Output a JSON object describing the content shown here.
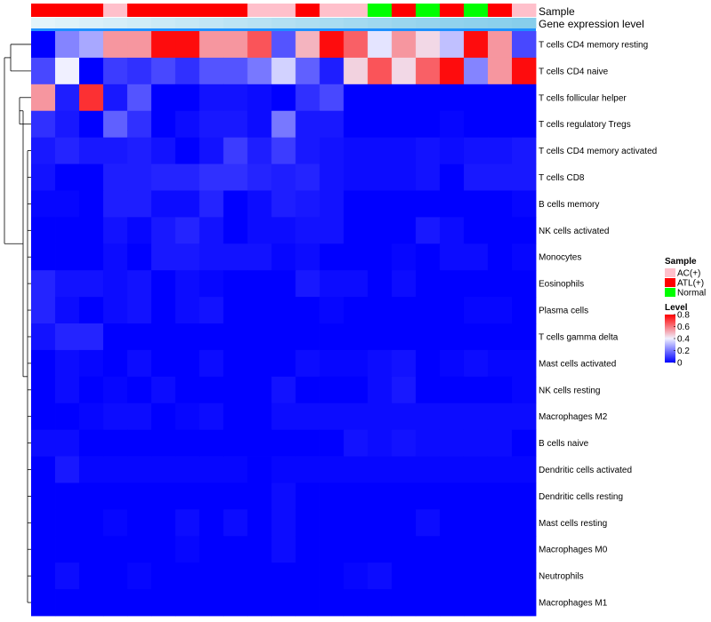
{
  "chart_data": {
    "type": "heatmap",
    "annotation_titles": {
      "sample": "Sample",
      "gene_expression": "Gene expression level"
    },
    "rows": [
      "T cells CD4 memory resting",
      "T cells CD4 naive",
      "T cells follicular helper",
      "T cells regulatory  Tregs",
      "T cells CD4 memory activated",
      "T cells CD8",
      "B cells memory",
      "NK cells activated",
      "Monocytes",
      "Eosinophils",
      "Plasma cells",
      "T cells gamma delta",
      "Mast cells activated",
      "NK cells resting",
      "Macrophages M2",
      "B cells naive",
      "Dendritic cells activated",
      "Dendritic cells resting",
      "Mast cells resting",
      "Macrophages M0",
      "Neutrophils",
      "Macrophages M1"
    ],
    "sample_groups": [
      "ATL(+)",
      "ATL(+)",
      "ATL(+)",
      "AC(+)",
      "ATL(+)",
      "ATL(+)",
      "ATL(+)",
      "ATL(+)",
      "ATL(+)",
      "AC(+)",
      "AC(+)",
      "ATL(+)",
      "AC(+)",
      "AC(+)",
      "Normal",
      "ATL(+)",
      "Normal",
      "ATL(+)",
      "Normal",
      "ATL(+)",
      "AC(+)"
    ],
    "gene_expression_level": [
      0.05,
      0.1,
      0.15,
      0.2,
      0.25,
      0.3,
      0.35,
      0.4,
      0.45,
      0.5,
      0.55,
      0.6,
      0.65,
      0.7,
      0.75,
      0.8,
      0.85,
      0.9,
      0.93,
      0.96,
      1.0
    ],
    "values": [
      [
        0.0,
        0.22,
        0.28,
        0.55,
        0.55,
        0.78,
        0.78,
        0.55,
        0.55,
        0.66,
        0.14,
        0.5,
        0.78,
        0.64,
        0.38,
        0.55,
        0.44,
        0.32,
        0.78,
        0.55,
        0.12
      ],
      [
        0.12,
        0.4,
        0.0,
        0.1,
        0.08,
        0.12,
        0.08,
        0.14,
        0.14,
        0.2,
        0.35,
        0.16,
        0.05,
        0.45,
        0.66,
        0.44,
        0.64,
        0.78,
        0.22,
        0.55,
        0.78
      ],
      [
        0.55,
        0.05,
        0.72,
        0.04,
        0.14,
        0.0,
        0.0,
        0.03,
        0.03,
        0.02,
        0.0,
        0.08,
        0.12,
        0.0,
        0.0,
        0.0,
        0.0,
        0.0,
        0.0,
        0.0,
        0.0
      ],
      [
        0.08,
        0.04,
        0.0,
        0.16,
        0.08,
        0.0,
        0.02,
        0.04,
        0.04,
        0.02,
        0.2,
        0.04,
        0.04,
        0.0,
        0.0,
        0.0,
        0.0,
        0.01,
        0.0,
        0.0,
        0.0
      ],
      [
        0.04,
        0.06,
        0.04,
        0.04,
        0.05,
        0.03,
        0.0,
        0.03,
        0.1,
        0.05,
        0.1,
        0.04,
        0.03,
        0.02,
        0.02,
        0.02,
        0.03,
        0.02,
        0.03,
        0.03,
        0.04
      ],
      [
        0.03,
        0.0,
        0.0,
        0.05,
        0.05,
        0.06,
        0.06,
        0.08,
        0.08,
        0.06,
        0.05,
        0.06,
        0.03,
        0.02,
        0.02,
        0.02,
        0.03,
        0.0,
        0.04,
        0.04,
        0.04
      ],
      [
        0.01,
        0.01,
        0.0,
        0.05,
        0.05,
        0.02,
        0.02,
        0.06,
        0.0,
        0.02,
        0.05,
        0.04,
        0.03,
        0.0,
        0.0,
        0.0,
        0.0,
        0.0,
        0.0,
        0.0,
        0.01
      ],
      [
        0.0,
        0.0,
        0.0,
        0.03,
        0.01,
        0.04,
        0.06,
        0.03,
        0.0,
        0.02,
        0.02,
        0.03,
        0.03,
        0.0,
        0.0,
        0.0,
        0.04,
        0.02,
        0.0,
        0.0,
        0.0
      ],
      [
        0.0,
        0.0,
        0.0,
        0.02,
        0.0,
        0.04,
        0.04,
        0.03,
        0.03,
        0.03,
        0.01,
        0.02,
        0.0,
        0.0,
        0.0,
        0.01,
        0.0,
        0.02,
        0.02,
        0.0,
        0.01
      ],
      [
        0.06,
        0.03,
        0.03,
        0.02,
        0.03,
        0.0,
        0.02,
        0.01,
        0.0,
        0.0,
        0.0,
        0.04,
        0.02,
        0.02,
        0.0,
        0.02,
        0.0,
        0.0,
        0.0,
        0.0,
        0.0
      ],
      [
        0.06,
        0.02,
        0.0,
        0.02,
        0.03,
        0.0,
        0.02,
        0.03,
        0.0,
        0.0,
        0.0,
        0.0,
        0.01,
        0.0,
        0.0,
        0.0,
        0.0,
        0.0,
        0.01,
        0.01,
        0.0
      ],
      [
        0.03,
        0.06,
        0.06,
        0.0,
        0.0,
        0.0,
        0.0,
        0.0,
        0.0,
        0.0,
        0.0,
        0.0,
        0.0,
        0.0,
        0.0,
        0.0,
        0.0,
        0.0,
        0.0,
        0.0,
        0.0
      ],
      [
        0.0,
        0.02,
        0.01,
        0.0,
        0.02,
        0.0,
        0.0,
        0.02,
        0.0,
        0.0,
        0.0,
        0.02,
        0.01,
        0.01,
        0.02,
        0.03,
        0.0,
        0.01,
        0.02,
        0.01,
        0.01
      ],
      [
        0.0,
        0.02,
        0.0,
        0.01,
        0.0,
        0.02,
        0.0,
        0.0,
        0.0,
        0.0,
        0.03,
        0.0,
        0.0,
        0.0,
        0.02,
        0.04,
        0.0,
        0.0,
        0.0,
        0.0,
        0.01
      ],
      [
        0.0,
        0.0,
        0.01,
        0.02,
        0.02,
        0.0,
        0.01,
        0.02,
        0.0,
        0.0,
        0.02,
        0.02,
        0.02,
        0.02,
        0.02,
        0.02,
        0.02,
        0.02,
        0.02,
        0.02,
        0.02
      ],
      [
        0.02,
        0.02,
        0.0,
        0.0,
        0.0,
        0.0,
        0.0,
        0.0,
        0.0,
        0.0,
        0.0,
        0.0,
        0.0,
        0.03,
        0.02,
        0.03,
        0.02,
        0.02,
        0.02,
        0.02,
        0.0
      ],
      [
        0.0,
        0.04,
        0.01,
        0.01,
        0.01,
        0.01,
        0.01,
        0.01,
        0.01,
        0.0,
        0.01,
        0.01,
        0.01,
        0.01,
        0.01,
        0.01,
        0.01,
        0.01,
        0.01,
        0.01,
        0.01
      ],
      [
        0.0,
        0.0,
        0.0,
        0.0,
        0.0,
        0.0,
        0.0,
        0.0,
        0.0,
        0.0,
        0.02,
        0.0,
        0.0,
        0.0,
        0.0,
        0.0,
        0.0,
        0.0,
        0.0,
        0.0,
        0.0
      ],
      [
        0.0,
        0.0,
        0.0,
        0.01,
        0.0,
        0.0,
        0.02,
        0.0,
        0.02,
        0.0,
        0.02,
        0.0,
        0.0,
        0.0,
        0.0,
        0.0,
        0.02,
        0.0,
        0.0,
        0.0,
        0.0
      ],
      [
        0.0,
        0.0,
        0.0,
        0.0,
        0.0,
        0.0,
        0.01,
        0.0,
        0.0,
        0.0,
        0.02,
        0.0,
        0.0,
        0.0,
        0.0,
        0.0,
        0.0,
        0.0,
        0.0,
        0.0,
        0.0
      ],
      [
        0.0,
        0.02,
        0.0,
        0.0,
        0.01,
        0.0,
        0.0,
        0.0,
        0.0,
        0.0,
        0.0,
        0.0,
        0.0,
        0.01,
        0.02,
        0.0,
        0.0,
        0.0,
        0.0,
        0.0,
        0.0
      ],
      [
        0.0,
        0.0,
        0.0,
        0.0,
        0.0,
        0.0,
        0.0,
        0.0,
        0.0,
        0.0,
        0.0,
        0.0,
        0.0,
        0.0,
        0.0,
        0.0,
        0.0,
        0.0,
        0.0,
        0.0,
        0.0
      ]
    ],
    "color_scale": {
      "low": "#0000FF",
      "mid": "#F0F0FF",
      "high": "#FF0000",
      "domain": [
        0,
        0.8
      ]
    },
    "legend": {
      "sample_title": "Sample",
      "sample_items": [
        {
          "label": "AC(+)",
          "color": "#FFC0CB"
        },
        {
          "label": "ATL(+)",
          "color": "#FF0000"
        },
        {
          "label": "Normal",
          "color": "#00FF00"
        }
      ],
      "level_title": "Level",
      "level_ticks": [
        "0.8",
        "0.6",
        "0.4",
        "0.2",
        "0"
      ],
      "level_tick_values": [
        0.8,
        0.6,
        0.4,
        0.2,
        0
      ],
      "placement": "right"
    },
    "gene_expression_colors": {
      "low": "#E8F6FB",
      "high": "#87CEEB"
    }
  }
}
